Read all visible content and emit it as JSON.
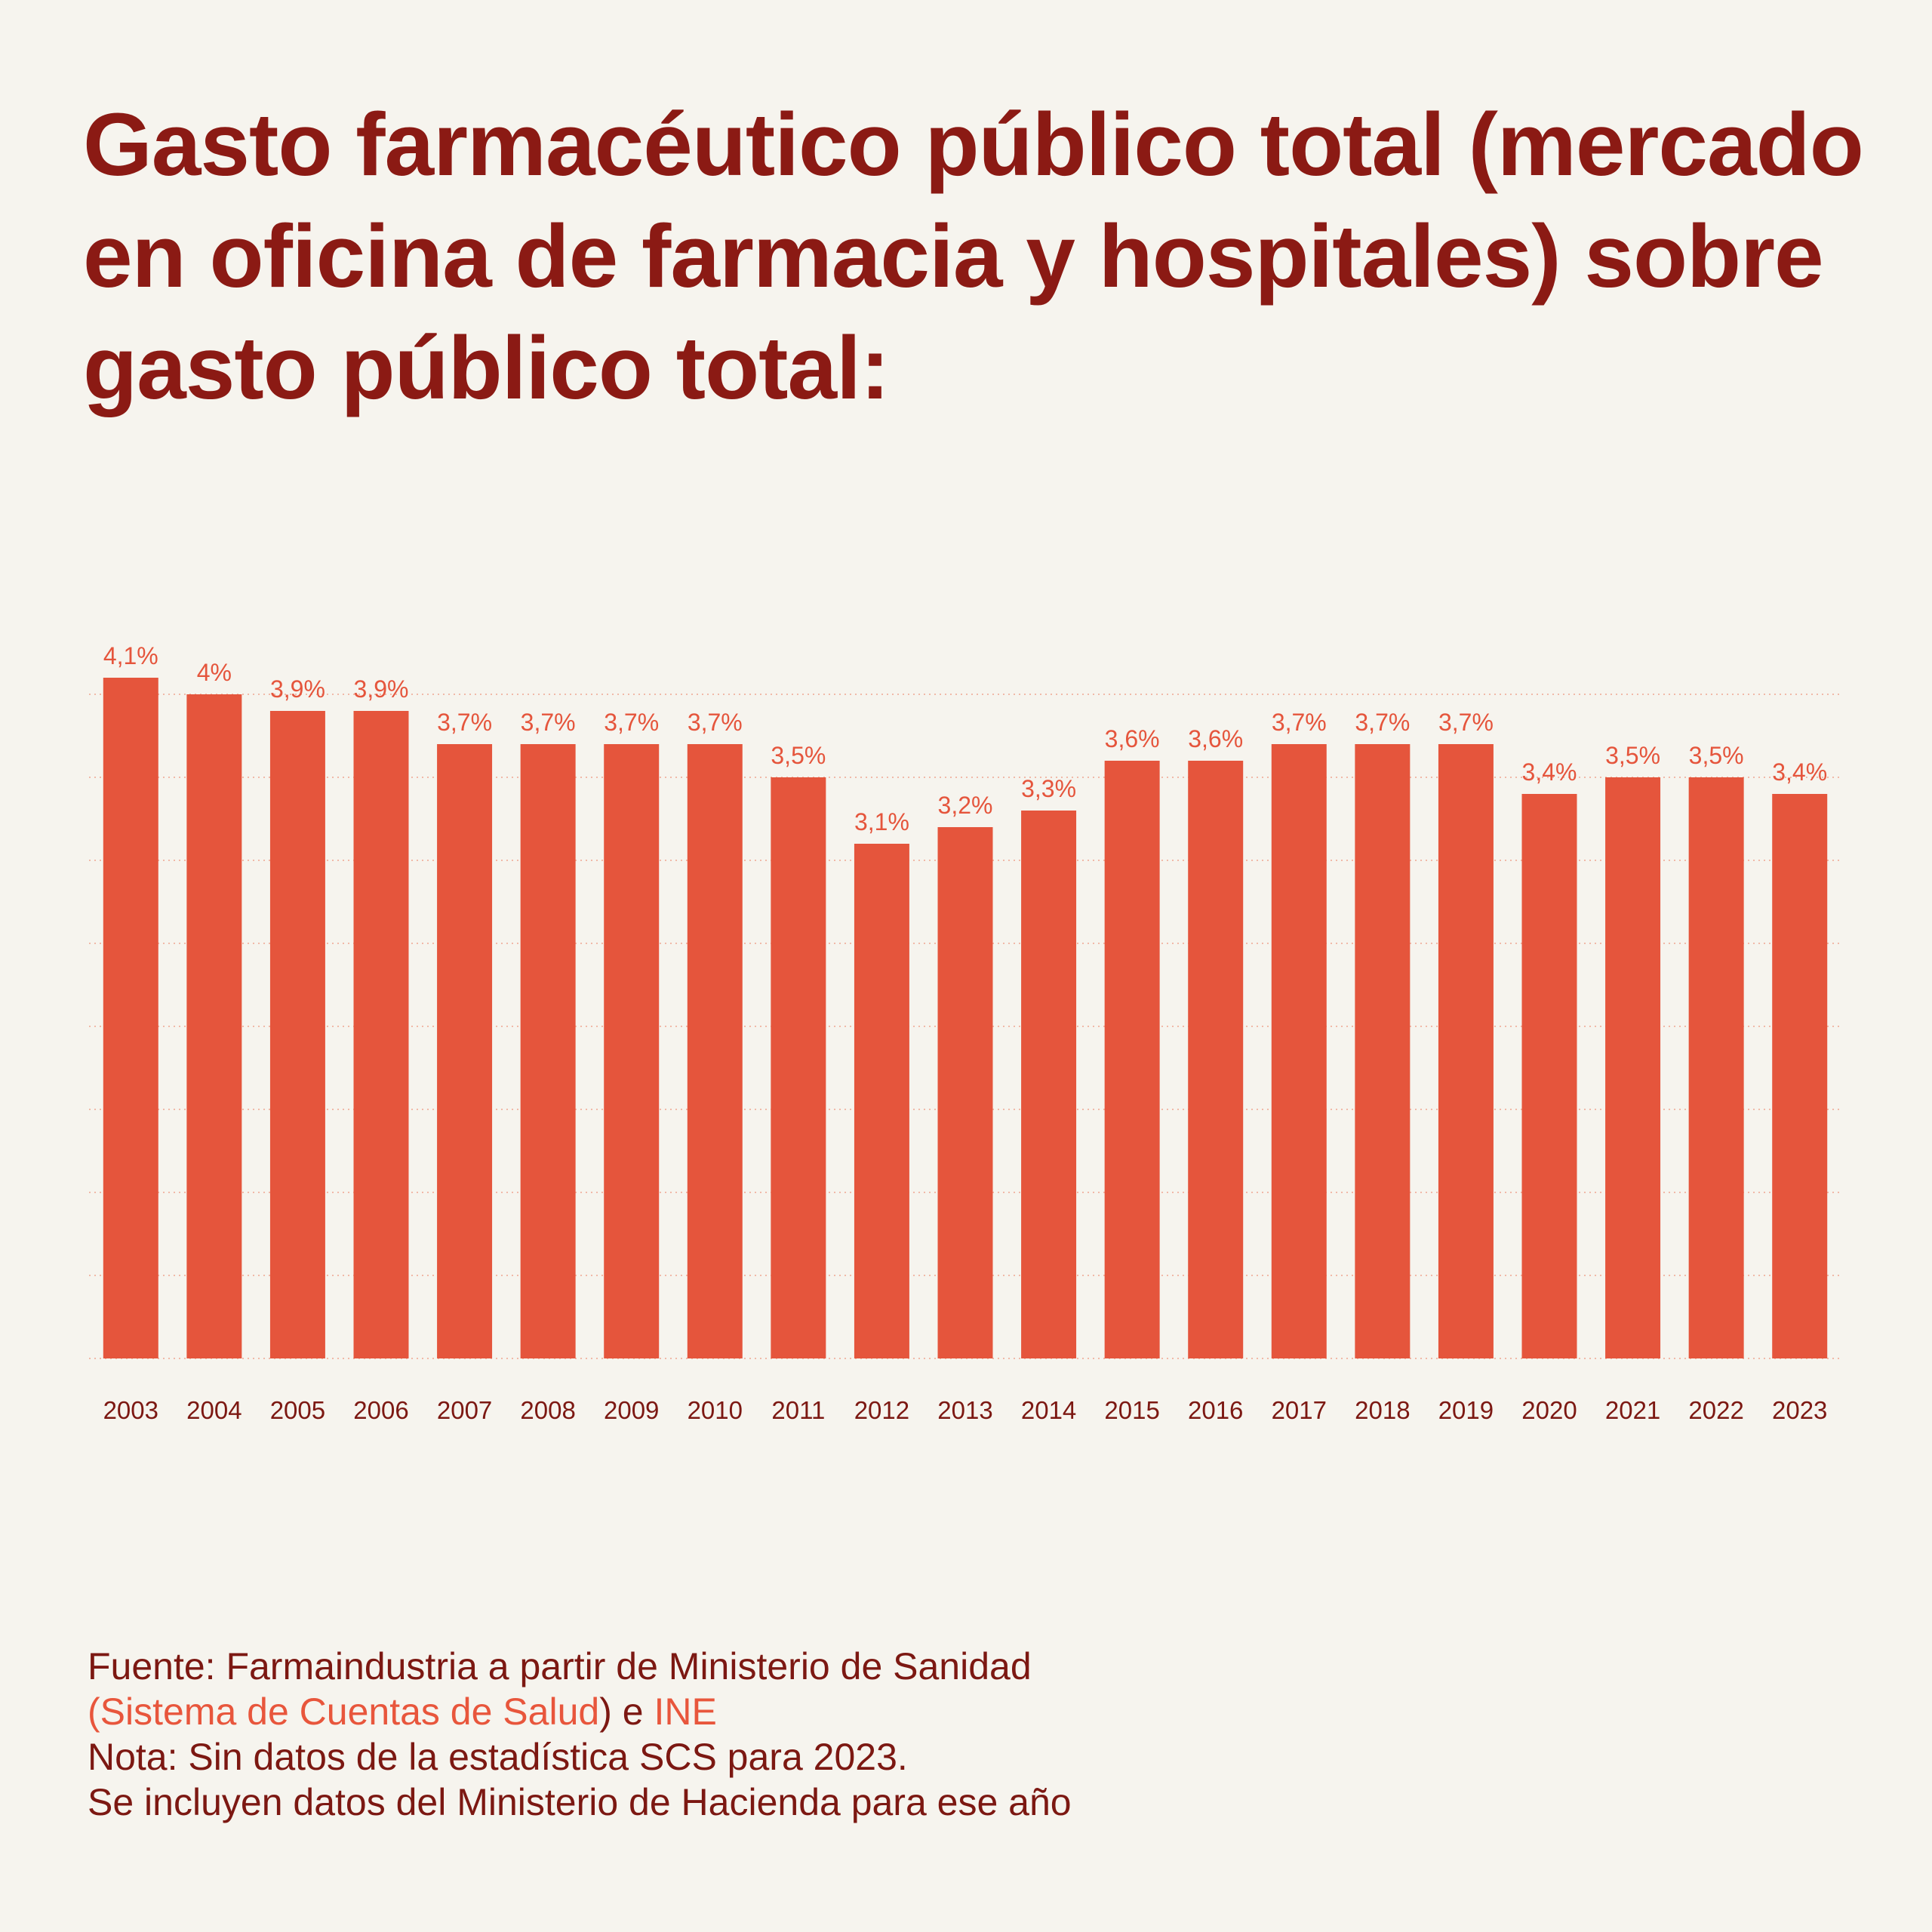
{
  "colors": {
    "background": "#f6f4ee",
    "title": "#8b1a14",
    "bar": "#e5553c",
    "data_label": "#e5553c",
    "tick_label": "#7c1812",
    "gridline": "#f0b9a8",
    "footer_text": "#7c1812",
    "footer_link": "#e8563c"
  },
  "chart_data": {
    "type": "bar",
    "title": "Gasto farmacéutico público total (mercado en oficina de farmacia y hospitales) sobre gasto público total:",
    "xlabel": "",
    "ylabel": "",
    "ylim": [
      0,
      4.0
    ],
    "grid": true,
    "grid_style": "dotted",
    "categories": [
      "2003",
      "2004",
      "2005",
      "2006",
      "2007",
      "2008",
      "2009",
      "2010",
      "2011",
      "2012",
      "2013",
      "2014",
      "2015",
      "2016",
      "2017",
      "2018",
      "2019",
      "2020",
      "2021",
      "2022",
      "2023"
    ],
    "values": [
      4.1,
      4.0,
      3.9,
      3.9,
      3.7,
      3.7,
      3.7,
      3.7,
      3.5,
      3.1,
      3.2,
      3.3,
      3.6,
      3.6,
      3.7,
      3.7,
      3.7,
      3.4,
      3.5,
      3.5,
      3.4
    ],
    "data_labels": [
      "4,1%",
      "4%",
      "3,9%",
      "3,9%",
      "3,7%",
      "3,7%",
      "3,7%",
      "3,7%",
      "3,5%",
      "3,1%",
      "3,2%",
      "3,3%",
      "3,6%",
      "3,6%",
      "3,7%",
      "3,7%",
      "3,7%",
      "3,4%",
      "3,5%",
      "3,5%",
      "3,4%"
    ]
  },
  "footer": {
    "source_prefix": "Fuente: Farmaindustria a partir de Ministerio de Sanidad",
    "source_open_paren": "(",
    "source_link_scs": "Sistema de Cuentas de Salud",
    "source_mid": ") e ",
    "source_link_ine": "INE",
    "note_line1": "Nota: Sin datos de la estadística SCS para 2023.",
    "note_line2": "Se incluyen datos del Ministerio de Hacienda para ese año"
  }
}
